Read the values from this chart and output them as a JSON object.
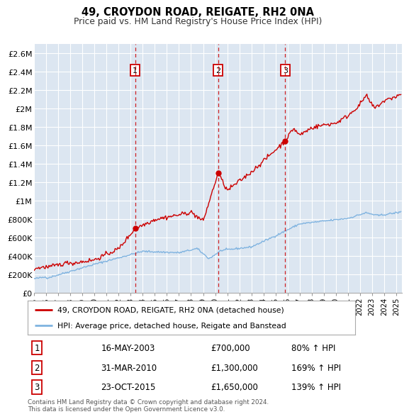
{
  "title": "49, CROYDON ROAD, REIGATE, RH2 0NA",
  "subtitle": "Price paid vs. HM Land Registry's House Price Index (HPI)",
  "bg_color": "#dce6f1",
  "hpi_color": "#7fb3e0",
  "price_color": "#cc0000",
  "ylim": [
    0,
    2700000
  ],
  "yticks": [
    0,
    200000,
    400000,
    600000,
    800000,
    1000000,
    1200000,
    1400000,
    1600000,
    1800000,
    2000000,
    2200000,
    2400000,
    2600000
  ],
  "ytick_labels": [
    "£0",
    "£200K",
    "£400K",
    "£600K",
    "£800K",
    "£1M",
    "£1.2M",
    "£1.4M",
    "£1.6M",
    "£1.8M",
    "£2M",
    "£2.2M",
    "£2.4M",
    "£2.6M"
  ],
  "xlim_start": 1995.0,
  "xlim_end": 2025.5,
  "xticks": [
    1995,
    1996,
    1997,
    1998,
    1999,
    2000,
    2001,
    2002,
    2003,
    2004,
    2005,
    2006,
    2007,
    2008,
    2009,
    2010,
    2011,
    2012,
    2013,
    2014,
    2015,
    2016,
    2017,
    2018,
    2019,
    2020,
    2021,
    2022,
    2023,
    2024,
    2025
  ],
  "transactions": [
    {
      "num": 1,
      "date_str": "16-MAY-2003",
      "date_x": 2003.37,
      "price": 700000,
      "label_pct": "80%",
      "vline_x": 2003.37
    },
    {
      "num": 2,
      "date_str": "31-MAR-2010",
      "date_x": 2010.25,
      "price": 1300000,
      "label_pct": "169%",
      "vline_x": 2010.25
    },
    {
      "num": 3,
      "date_str": "23-OCT-2015",
      "date_x": 2015.81,
      "price": 1650000,
      "label_pct": "139%",
      "vline_x": 2015.81
    }
  ],
  "legend_label1": "49, CROYDON ROAD, REIGATE, RH2 0NA (detached house)",
  "legend_label2": "HPI: Average price, detached house, Reigate and Banstead",
  "footer1": "Contains HM Land Registry data © Crown copyright and database right 2024.",
  "footer2": "This data is licensed under the Open Government Licence v3.0."
}
